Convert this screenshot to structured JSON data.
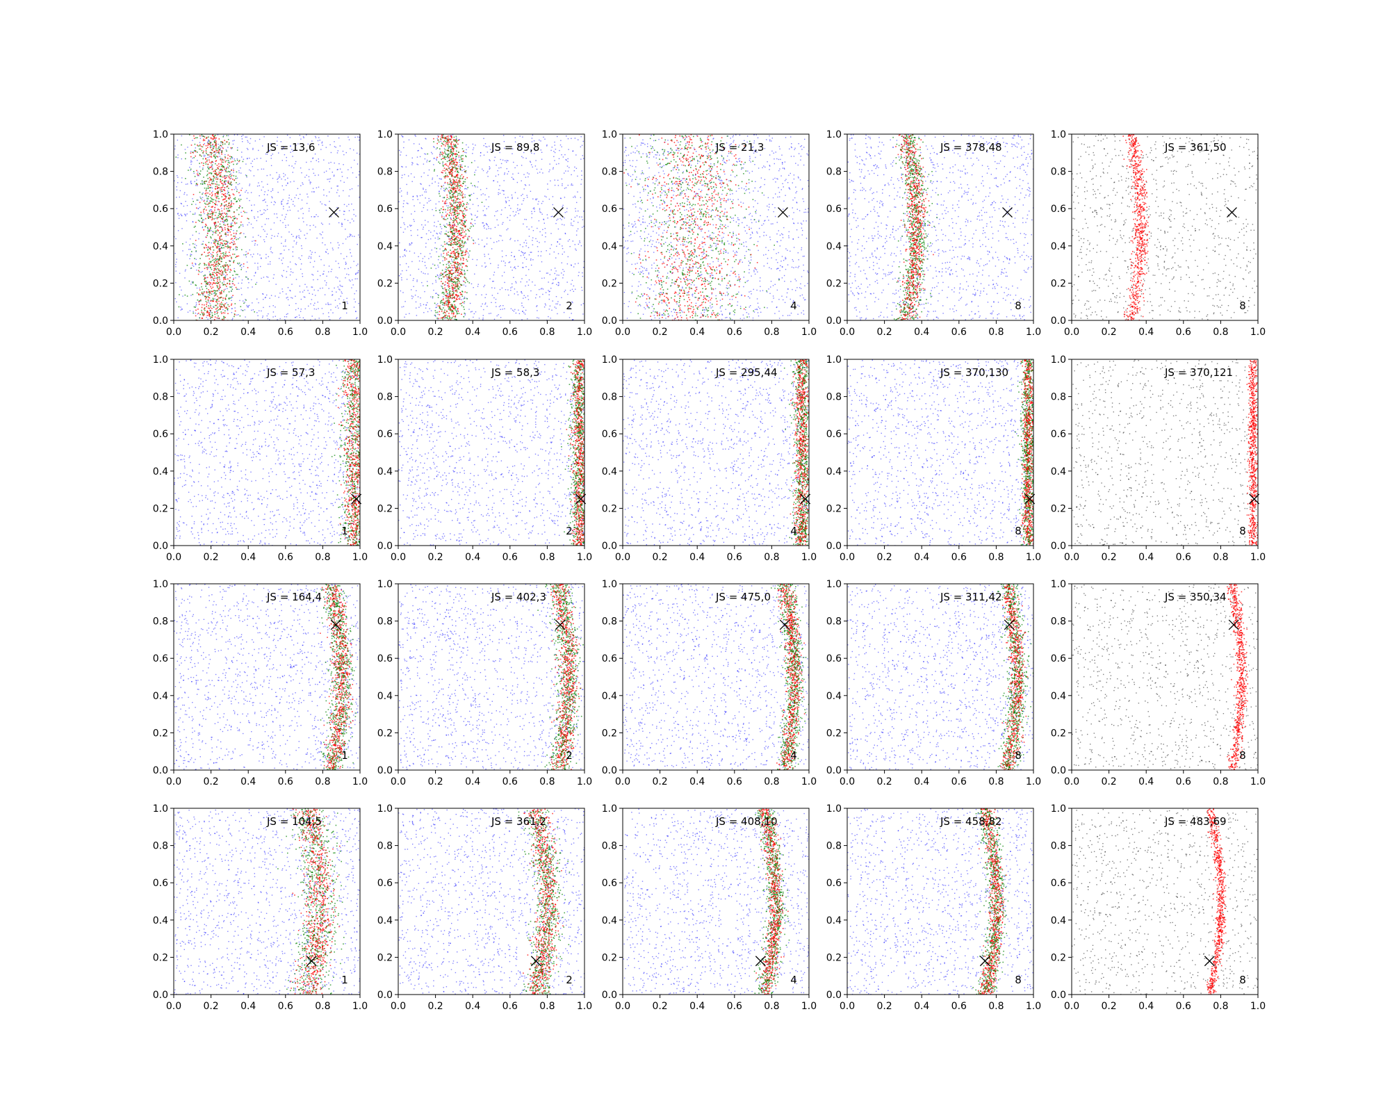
{
  "chart_data": {
    "type": "scatter",
    "grid": false,
    "rows": 4,
    "cols": 5,
    "xlim": [
      0,
      1
    ],
    "ylim": [
      0,
      1
    ],
    "xticks": [
      "0.0",
      "0.2",
      "0.4",
      "0.6",
      "0.8",
      "1.0"
    ],
    "yticks": [
      "0.0",
      "0.2",
      "0.4",
      "0.6",
      "0.8",
      "1.0"
    ],
    "colors": {
      "noise": "#0000ff",
      "green": "#008000",
      "red": "#ff0000",
      "gray": "#000000"
    },
    "marker_points": [
      [
        0.86,
        0.58
      ],
      [
        0.98,
        0.25
      ],
      [
        0.87,
        0.78
      ],
      [
        0.74,
        0.18
      ]
    ],
    "panels": [
      {
        "js": "JS = 13,6",
        "k": "1",
        "style": "mixed",
        "band": [
          0.2,
          0.05
        ],
        "width": 0.05
      },
      {
        "js": "JS = 89,8",
        "k": "2",
        "style": "mixed",
        "band": [
          0.26,
          0.05
        ],
        "width": 0.03
      },
      {
        "js": "JS = 21,3",
        "k": "4",
        "style": "mixed",
        "band": [
          0.35,
          0.04
        ],
        "width": 0.12
      },
      {
        "js": "JS = 378,48",
        "k": "8",
        "style": "tight",
        "band": [
          0.32,
          0.05
        ],
        "width": 0.025
      },
      {
        "js": "JS = 361,50",
        "k": "8",
        "style": "gray",
        "band": [
          0.32,
          0.05
        ],
        "width": 0.02
      },
      {
        "js": "JS = 57,3",
        "k": "1",
        "style": "mixed",
        "band": [
          0.97,
          0.0
        ],
        "width": 0.03
      },
      {
        "js": "JS = 58,3",
        "k": "2",
        "style": "mixed",
        "band": [
          0.97,
          0.0
        ],
        "width": 0.02
      },
      {
        "js": "JS = 295,44",
        "k": "4",
        "style": "tight",
        "band": [
          0.96,
          0.0
        ],
        "width": 0.02
      },
      {
        "js": "JS = 370,130",
        "k": "8",
        "style": "tight",
        "band": [
          0.97,
          0.0
        ],
        "width": 0.015
      },
      {
        "js": "JS = 370,121",
        "k": "8",
        "style": "gray",
        "band": [
          0.97,
          0.0
        ],
        "width": 0.012
      },
      {
        "js": "JS = 164,4",
        "k": "1",
        "style": "mixed",
        "band": [
          0.85,
          0.05
        ],
        "width": 0.025
      },
      {
        "js": "JS = 402,3",
        "k": "2",
        "style": "mixed",
        "band": [
          0.86,
          0.05
        ],
        "width": 0.025
      },
      {
        "js": "JS = 475,0",
        "k": "4",
        "style": "tight",
        "band": [
          0.87,
          0.05
        ],
        "width": 0.02
      },
      {
        "js": "JS = 311,42",
        "k": "8",
        "style": "tight",
        "band": [
          0.86,
          0.05
        ],
        "width": 0.02
      },
      {
        "js": "JS = 350,34",
        "k": "8",
        "style": "gray",
        "band": [
          0.86,
          0.05
        ],
        "width": 0.015
      },
      {
        "js": "JS = 104,5",
        "k": "1",
        "style": "mixed",
        "band": [
          0.72,
          0.06
        ],
        "width": 0.04
      },
      {
        "js": "JS = 361,2",
        "k": "2",
        "style": "mixed",
        "band": [
          0.74,
          0.06
        ],
        "width": 0.03
      },
      {
        "js": "JS = 408,10",
        "k": "4",
        "style": "tight",
        "band": [
          0.76,
          0.06
        ],
        "width": 0.02
      },
      {
        "js": "JS = 458,82",
        "k": "8",
        "style": "tight",
        "band": [
          0.74,
          0.06
        ],
        "width": 0.02
      },
      {
        "js": "JS = 483,69",
        "k": "8",
        "style": "gray",
        "band": [
          0.74,
          0.06
        ],
        "width": 0.012
      }
    ]
  }
}
